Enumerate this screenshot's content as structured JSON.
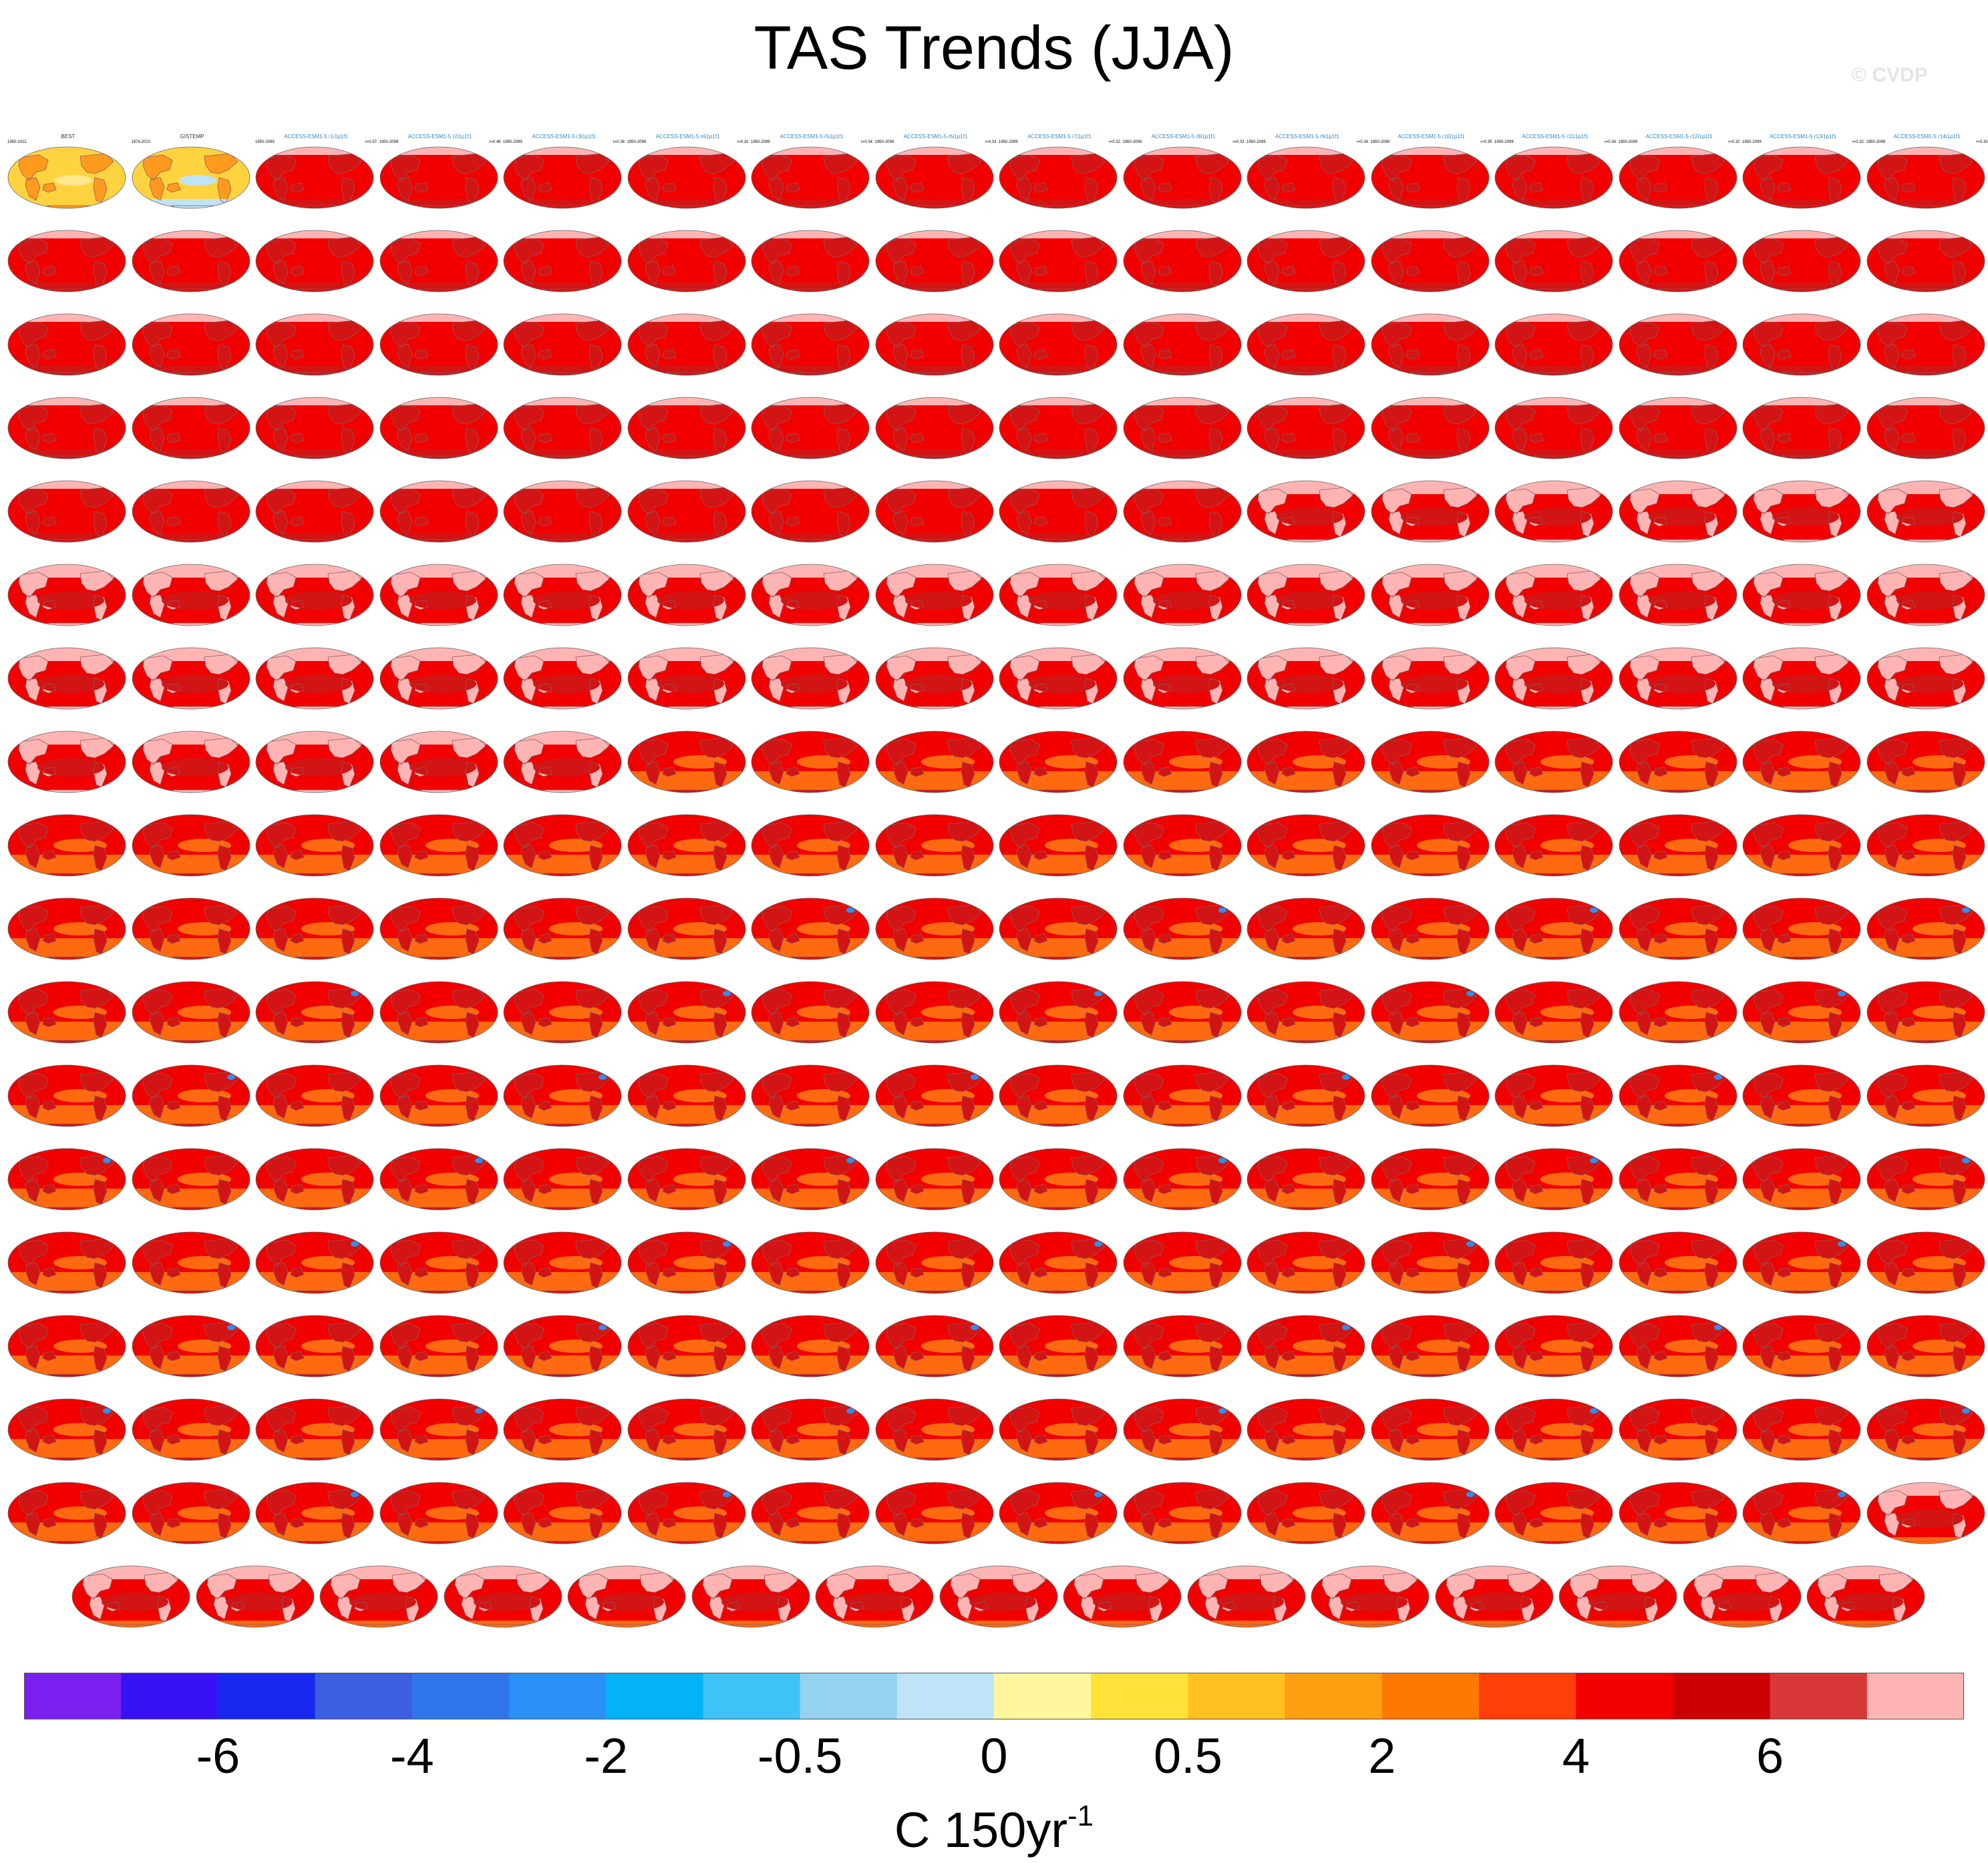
{
  "title": "TAS Trends (JJA)",
  "credit": "© CVDP",
  "colorbar": {
    "colors": [
      "#7b1ff0",
      "#3812f5",
      "#1828f0",
      "#3c5ee0",
      "#2f76ea",
      "#2a90f5",
      "#04b3f7",
      "#3fc3f7",
      "#94d2f0",
      "#bfe3f7",
      "#fff69e",
      "#ffe13a",
      "#ffc020",
      "#ff9e10",
      "#ff7800",
      "#ff3e08",
      "#f20000",
      "#cc0000",
      "#d83838",
      "#ffb4b4"
    ],
    "tick_labels": [
      "-6",
      "-4",
      "-2",
      "-0.5",
      "0",
      "0.5",
      "2",
      "4",
      "6"
    ],
    "units_main": "C 150yr",
    "units_sup": "-1"
  },
  "panel_palette": {
    "obs_ocean": "#ffd340",
    "obs_land": "#ff9a1f",
    "obs_cool": "#bfe3f7",
    "red_base": "#f20000",
    "red_dark": "#d21414",
    "pink": "#ffb4b4",
    "orange": "#ff6a10",
    "blue_spot": "#2a90f5",
    "land_outline": "#8c5a5a"
  },
  "chart_data": {
    "type": "heatmap",
    "title": "TAS Trends (JJA)",
    "colorbar_label": "C 150yr-1",
    "colorbar_ticks": [
      "-6",
      "-4",
      "-2",
      "-0.5",
      "0",
      "0.5",
      "2",
      "4",
      "6"
    ],
    "panel_grid": "16 columns x 17 full rows plus a final centered row of 15 panels",
    "panels": [
      {
        "label": "BEST",
        "years": "1950-2022",
        "variant": "obs1"
      },
      {
        "label": "GISTEMP",
        "years": "1974-2022",
        "variant": "obs2"
      },
      {
        "label": "ACCESS-ESM1-5 r1i1p1f1",
        "years": "1950-2099",
        "value": "r=0.57",
        "variant": "access"
      },
      {
        "label": "ACCESS-ESM1-5 r2i1p1f1",
        "years": "1950-2099",
        "value": "r=0.46",
        "variant": "access"
      },
      {
        "label": "ACCESS-ESM1-5 r3i1p1f1",
        "years": "1950-2099",
        "value": "r=0.36",
        "variant": "access"
      },
      {
        "label": "ACCESS-ESM1-5 r4i1p1f1",
        "years": "1950-2099",
        "value": "r=0.32",
        "variant": "access"
      },
      {
        "label": "ACCESS-ESM1-5 r5i1p1f1",
        "years": "1950-2099",
        "value": "r=0.34",
        "variant": "access"
      },
      {
        "label": "ACCESS-ESM1-5 r6i1p1f1",
        "years": "1950-2099",
        "value": "r=0.32",
        "variant": "access"
      },
      {
        "label": "ACCESS-ESM1-5 r7i1p1f1",
        "years": "1950-2099",
        "value": "r=0.32",
        "variant": "access"
      },
      {
        "label": "ACCESS-ESM1-5 r8i1p1f1",
        "years": "1950-2099",
        "value": "r=0.32",
        "variant": "access"
      },
      {
        "label": "ACCESS-ESM1-5 r9i1p1f1",
        "years": "1950-2099",
        "value": "r=0.34",
        "variant": "access"
      },
      {
        "label": "ACCESS-ESM1-5 r10i1p1f1",
        "years": "1950-2099",
        "value": "r=0.35",
        "variant": "access"
      },
      {
        "label": "ACCESS-ESM1-5 r11i1p1f1",
        "years": "1950-2099",
        "value": "r=0.34",
        "variant": "access"
      },
      {
        "label": "ACCESS-ESM1-5 r12i1p1f1",
        "years": "1950-2099",
        "value": "r=0.32",
        "variant": "access"
      },
      {
        "label": "ACCESS-ESM1-5 r13i1p1f1",
        "years": "1950-2099",
        "value": "r=0.32",
        "variant": "access"
      },
      {
        "label": "ACCESS-ESM1-5 r14i1p1f1",
        "years": "1950-2099",
        "value": "r=0.33",
        "variant": "access"
      }
    ],
    "note": "Remaining 263 small map panels (ACCESS-ESM1-5, CanESM5, CESM1, CESM2, CSIRO members) use the same style; their tiny labels are not legible at this resolution."
  }
}
